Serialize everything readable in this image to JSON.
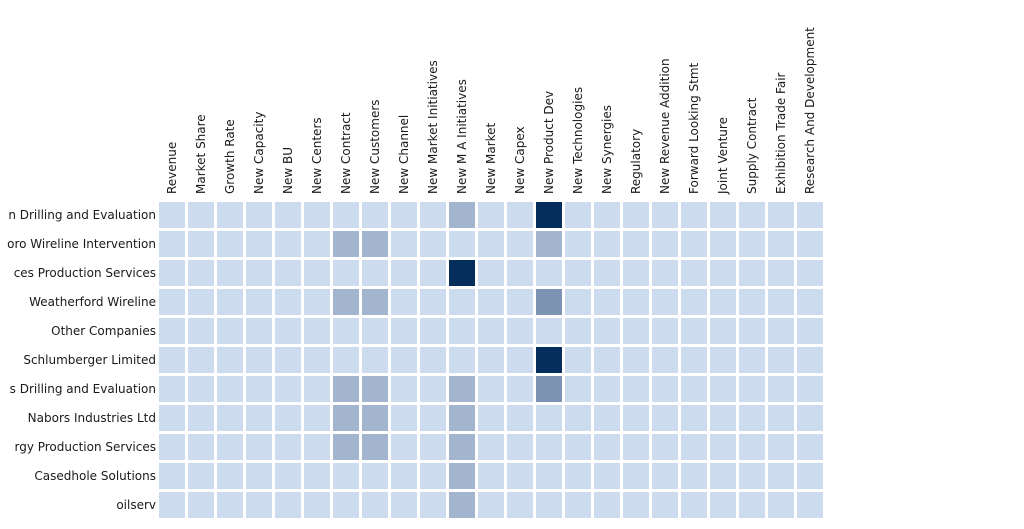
{
  "chart_data": {
    "type": "heatmap",
    "columns": [
      "Revenue",
      "Market Share",
      "Growth Rate",
      "New Capacity",
      "New BU",
      "New Centers",
      "New Contract",
      "New Customers",
      "New Channel",
      "New Market Initiatives",
      "New M A Initiatives",
      "New Market",
      "New Capex",
      "New Product Dev",
      "New Technologies",
      "New Synergies",
      "Regulatory",
      "New Revenue Addition",
      "Forward Looking Stmt",
      "Joint Venture",
      "Supply Contract",
      "Exhibition Trade Fair",
      "Research And Development"
    ],
    "rows": [
      "n Drilling and Evaluation",
      "oro Wireline Intervention",
      "ces Production Services",
      "Weatherford Wireline",
      "Other Companies",
      "Schlumberger Limited",
      "s Drilling and Evaluation",
      "Nabors Industries Ltd",
      "rgy Production Services",
      "Casedhole Solutions",
      "oilserv"
    ],
    "values": [
      [
        0,
        0,
        0,
        0,
        0,
        0,
        0,
        0,
        0,
        0,
        1,
        0,
        0,
        3,
        0,
        0,
        0,
        0,
        0,
        0,
        0,
        0,
        0
      ],
      [
        0,
        0,
        0,
        0,
        0,
        0,
        1,
        1,
        0,
        0,
        0,
        0,
        0,
        1,
        0,
        0,
        0,
        0,
        0,
        0,
        0,
        0,
        0
      ],
      [
        0,
        0,
        0,
        0,
        0,
        0,
        0,
        0,
        0,
        0,
        3,
        0,
        0,
        0,
        0,
        0,
        0,
        0,
        0,
        0,
        0,
        0,
        0
      ],
      [
        0,
        0,
        0,
        0,
        0,
        0,
        1,
        1,
        0,
        0,
        0,
        0,
        0,
        2,
        0,
        0,
        0,
        0,
        0,
        0,
        0,
        0,
        0
      ],
      [
        0,
        0,
        0,
        0,
        0,
        0,
        0,
        0,
        0,
        0,
        0,
        0,
        0,
        0,
        0,
        0,
        0,
        0,
        0,
        0,
        0,
        0,
        0
      ],
      [
        0,
        0,
        0,
        0,
        0,
        0,
        0,
        0,
        0,
        0,
        0,
        0,
        0,
        3,
        0,
        0,
        0,
        0,
        0,
        0,
        0,
        0,
        0
      ],
      [
        0,
        0,
        0,
        0,
        0,
        0,
        1,
        1,
        0,
        0,
        1,
        0,
        0,
        2,
        0,
        0,
        0,
        0,
        0,
        0,
        0,
        0,
        0
      ],
      [
        0,
        0,
        0,
        0,
        0,
        0,
        1,
        1,
        0,
        0,
        1,
        0,
        0,
        0,
        0,
        0,
        0,
        0,
        0,
        0,
        0,
        0,
        0
      ],
      [
        0,
        0,
        0,
        0,
        0,
        0,
        1,
        1,
        0,
        0,
        1,
        0,
        0,
        0,
        0,
        0,
        0,
        0,
        0,
        0,
        0,
        0,
        0
      ],
      [
        0,
        0,
        0,
        0,
        0,
        0,
        0,
        0,
        0,
        0,
        1,
        0,
        0,
        0,
        0,
        0,
        0,
        0,
        0,
        0,
        0,
        0,
        0
      ],
      [
        0,
        0,
        0,
        0,
        0,
        0,
        0,
        0,
        0,
        0,
        1,
        0,
        0,
        0,
        0,
        0,
        0,
        0,
        0,
        0,
        0,
        0,
        0
      ]
    ],
    "color_scale": [
      "#ccdbed",
      "#a3b4cf",
      "#7d93b3",
      "#052e5c"
    ],
    "grid": false,
    "legend": "none"
  }
}
